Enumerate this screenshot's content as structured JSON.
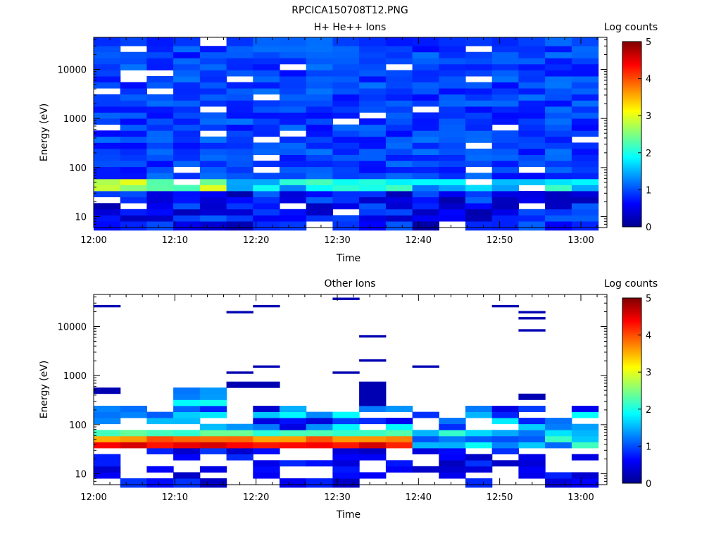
{
  "figure_title": "RPCICA150708T12.PNG",
  "chart_data": [
    {
      "type": "heatmap",
      "title": "H+ He++ Ions",
      "xlabel": "Time",
      "ylabel": "Energy (eV)",
      "x_ticks": [
        "12:00",
        "12:10",
        "12:20",
        "12:30",
        "12:40",
        "12:50",
        "13:00"
      ],
      "x_range": [
        "12:00",
        "13:03"
      ],
      "y_scale": "log",
      "y_ticks": [
        "10",
        "100",
        "1000",
        "10000"
      ],
      "y_range": [
        6,
        45000
      ],
      "colorbar": {
        "label": "Log counts",
        "ticks": [
          "0",
          "1",
          "2",
          "3",
          "4",
          "5"
        ],
        "range": [
          0,
          5
        ]
      },
      "time_bin_minutes": 3.27,
      "n_time_bins": 19,
      "energy_bins_ev": [
        7,
        9.3,
        12.4,
        16.4,
        21.8,
        29,
        38.5,
        51,
        68,
        90,
        120,
        159,
        211,
        280,
        372,
        494,
        656,
        871,
        1156,
        1535,
        2038,
        2706,
        3593,
        4770,
        6334,
        8410,
        11166,
        14826,
        19686,
        26140,
        34700
      ],
      "overview_log_counts": {
        "below_30eV": "0.2-1.0 (dark blue)",
        "30_to_60eV": "1.0-2.5 (cyan to green, up to ~3 near 12:05)",
        "above_60eV": "0.6-1.2 (blue)"
      }
    },
    {
      "type": "heatmap",
      "title": "Other Ions",
      "xlabel": "Time",
      "ylabel": "Energy (eV)",
      "x_ticks": [
        "12:00",
        "12:10",
        "12:20",
        "12:30",
        "12:40",
        "12:50",
        "13:00"
      ],
      "x_range": [
        "12:00",
        "13:03"
      ],
      "y_scale": "log",
      "y_ticks": [
        "10",
        "100",
        "1000",
        "10000"
      ],
      "y_range": [
        6,
        45000
      ],
      "colorbar": {
        "label": "Log counts",
        "ticks": [
          "0",
          "1",
          "2",
          "3",
          "4",
          "5"
        ],
        "range": [
          0,
          5
        ]
      },
      "time_bin_minutes": 3.27,
      "n_time_bins": 19,
      "energy_bins_ev": [
        7,
        9.3,
        12.4,
        16.4,
        21.8,
        29,
        38.5,
        51,
        68,
        90,
        120,
        159,
        211,
        280,
        372,
        494,
        656,
        871,
        1156,
        1535,
        2038,
        2706,
        3593,
        4770,
        6334,
        8410,
        11166,
        14826,
        19686,
        26140,
        34700
      ],
      "overview_log_counts": {
        "30_to_60eV_12:00-12:35": "2.5-4.5 (yellow to red peak near 40 eV)",
        "60_to_600eV": "0.5-2.5 (blue to green), sparse",
        "above_600eV": "sparse isolated ~0.3 (dark blue lines)"
      }
    }
  ]
}
